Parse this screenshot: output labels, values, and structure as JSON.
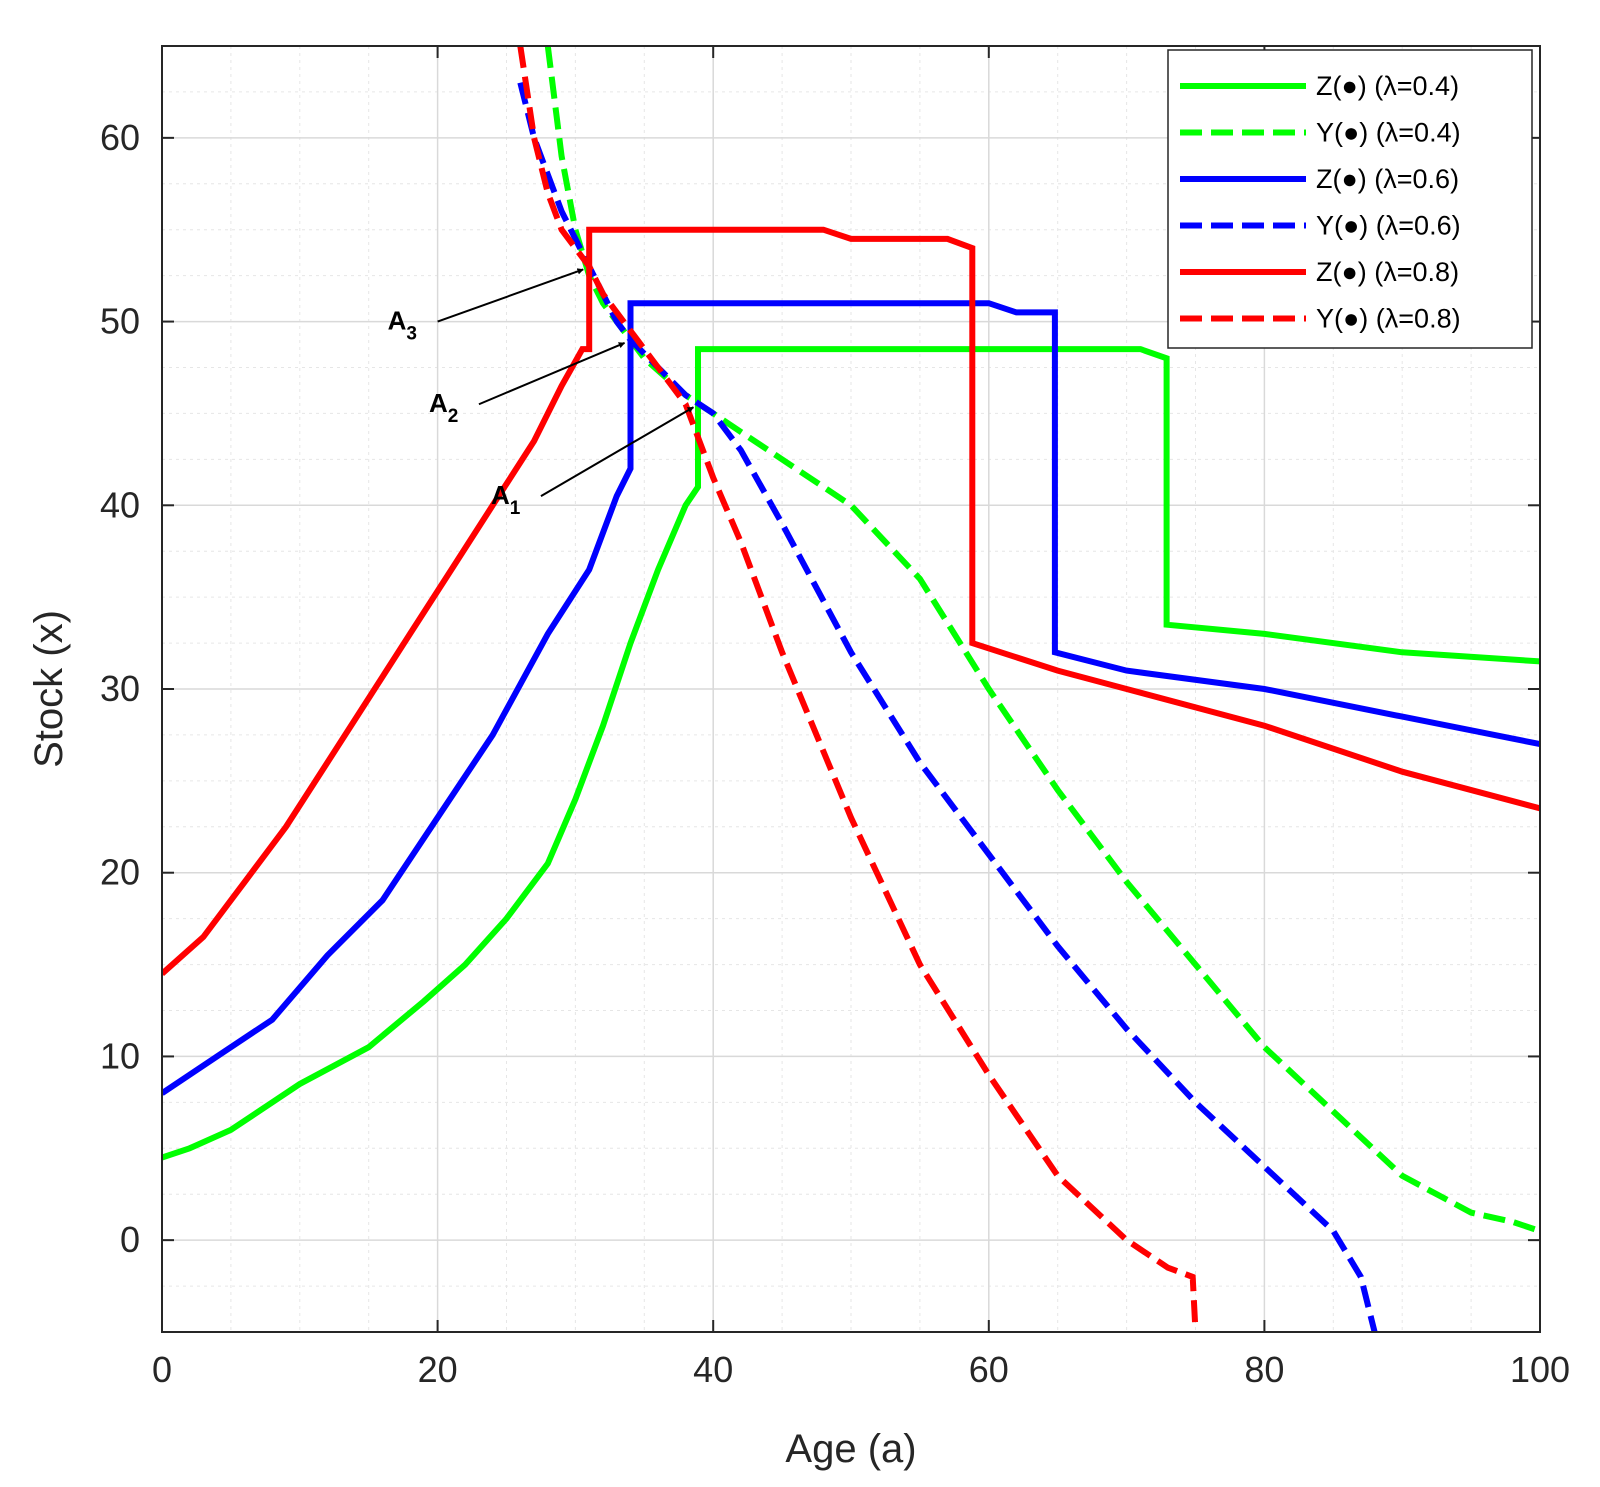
{
  "chart_data": {
    "type": "line",
    "title": "",
    "xlabel": "Age (a)",
    "ylabel": "Stock (x)",
    "xlim": [
      0,
      100
    ],
    "ylim": [
      -5,
      65
    ],
    "xticks": [
      0,
      20,
      40,
      60,
      80,
      100
    ],
    "yticks": [
      0,
      10,
      20,
      30,
      40,
      50,
      60
    ],
    "xtick_labels": [
      "0",
      "20",
      "40",
      "60",
      "80",
      "100"
    ],
    "ytick_labels": [
      "0",
      "10",
      "20",
      "30",
      "40",
      "50",
      "60"
    ],
    "grid": "major and minor",
    "legend_position": "top-right",
    "series": [
      {
        "name": "Z(●) (λ=0.4)",
        "color": "#00ff00",
        "style": "solid",
        "x": [
          0,
          2,
          5,
          8,
          10,
          15,
          19,
          22,
          25,
          28,
          30,
          32,
          34,
          36,
          38,
          38.9,
          38.9,
          45,
          55,
          65,
          71,
          72.9,
          72.9,
          80,
          90,
          100
        ],
        "y": [
          4.5,
          5.0,
          6.0,
          7.5,
          8.5,
          10.5,
          13.0,
          15.0,
          17.5,
          20.5,
          24.0,
          28.0,
          32.5,
          36.5,
          40.0,
          41.0,
          48.5,
          48.5,
          48.5,
          48.5,
          48.5,
          48.0,
          33.5,
          33.0,
          32.0,
          31.5
        ]
      },
      {
        "name": "Y(●) (λ=0.4)",
        "color": "#00ff00",
        "style": "dashed",
        "x": [
          28,
          29,
          30,
          31,
          32,
          35,
          38,
          40,
          45,
          50,
          55,
          60,
          65,
          70,
          75,
          80,
          85,
          90,
          95,
          98,
          100
        ],
        "y": [
          65,
          59,
          55,
          52.5,
          51,
          48,
          46,
          45,
          42.5,
          40,
          36,
          30,
          24.5,
          19.5,
          15,
          10.5,
          7,
          3.5,
          1.5,
          1.0,
          0.5
        ]
      },
      {
        "name": "Z(●) (λ=0.6)",
        "color": "#0000ff",
        "style": "solid",
        "x": [
          0,
          4,
          8,
          12,
          16,
          20,
          24,
          28,
          31,
          33,
          34,
          34,
          40,
          50,
          60,
          62,
          64.8,
          64.8,
          70,
          80,
          90,
          100
        ],
        "y": [
          8.0,
          10.0,
          12.0,
          15.5,
          18.5,
          23.0,
          27.5,
          33.0,
          36.5,
          40.5,
          42.0,
          51.0,
          51.0,
          51.0,
          51.0,
          50.5,
          50.5,
          32.0,
          31.0,
          30.0,
          28.5,
          27.0
        ]
      },
      {
        "name": "Y(●) (λ=0.6)",
        "color": "#0000ff",
        "style": "dashed",
        "x": [
          26,
          27,
          28,
          29,
          30,
          31,
          32,
          33,
          34,
          36,
          38,
          40,
          42,
          45,
          50,
          55,
          60,
          65,
          70,
          75,
          80,
          85,
          87,
          88
        ],
        "y": [
          63,
          60,
          58,
          56,
          54.5,
          53,
          51.5,
          50,
          49,
          47.5,
          46,
          45,
          43,
          39,
          32,
          26,
          21,
          16,
          11.5,
          7.5,
          4,
          0.5,
          -2,
          -5
        ]
      },
      {
        "name": "Z(●) (λ=0.8)",
        "color": "#ff0000",
        "style": "solid",
        "x": [
          0,
          3,
          6,
          9,
          12,
          15,
          18,
          21,
          24,
          27,
          29,
          30.5,
          31,
          31,
          40,
          48,
          50,
          57,
          58.8,
          58.8,
          65,
          70,
          80,
          90,
          100
        ],
        "y": [
          14.5,
          16.5,
          19.5,
          22.5,
          26.0,
          29.5,
          33.0,
          36.5,
          40.0,
          43.5,
          46.5,
          48.5,
          48.5,
          55.0,
          55.0,
          55.0,
          54.5,
          54.5,
          54.0,
          32.5,
          31.0,
          30.0,
          28.0,
          25.5,
          23.5
        ]
      },
      {
        "name": "Y(●) (λ=0.8)",
        "color": "#ff0000",
        "style": "dashed",
        "x": [
          26,
          27,
          28,
          29,
          30,
          31,
          32,
          34,
          36,
          38,
          39,
          40,
          42,
          45,
          50,
          55,
          60,
          65,
          70,
          73,
          74.8,
          75
        ],
        "y": [
          65,
          60,
          57,
          55,
          54,
          53,
          51.5,
          49.5,
          47.5,
          45.5,
          43.5,
          41.5,
          38,
          32,
          23,
          15,
          9,
          3.5,
          0,
          -1.5,
          -2,
          -5
        ]
      }
    ],
    "annotations": [
      {
        "label": "A",
        "sub": "1",
        "x": 39,
        "y": 45.5,
        "text_x": 27.5,
        "text_y": 40.5
      },
      {
        "label": "A",
        "sub": "2",
        "x": 34,
        "y": 49,
        "text_x": 23,
        "text_y": 45.5
      },
      {
        "label": "A",
        "sub": "3",
        "x": 31,
        "y": 53,
        "text_x": 20,
        "text_y": 50
      }
    ]
  }
}
